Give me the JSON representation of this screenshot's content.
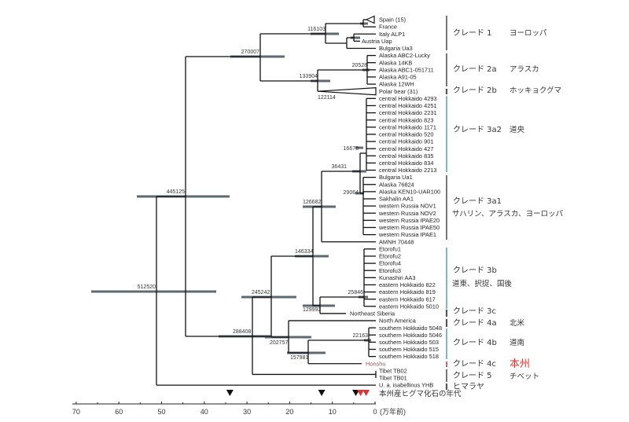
{
  "colors": {
    "branch": "#111111",
    "error_bar": "#5f6873",
    "blue_bracket": "#5aa9c2",
    "grey_bracket": "#555555",
    "red": "#d23a3a"
  },
  "leaves": [
    "Spain (15)",
    "France",
    "Italy ALP1",
    "Austria Uap",
    "Bulgaria Ua3",
    "Alaska ABC2-Lucky",
    "Alaska 14KB",
    "Alaska ABC1-051711",
    "Alaska A91-05",
    "Alaska 12WH",
    "Polar bear (31)",
    "central Hokkaido 4293",
    "central Hokkaido 4251",
    "central Hokkaido 2231",
    "central Hokkaido 823",
    "central Hokkaido 1171",
    "central Hokkaido 520",
    "central Hokkaido 901",
    "central Hokkaido 427",
    "central Hokkaido 835",
    "central Hokkaido 834",
    "central Hokkaido 2213",
    "Bulgaria  Ua1",
    "Alaska 76824",
    "Alaska KEN10-UAR100",
    "Sakhalin AA1",
    "western Russia NOV1",
    "western Russia NOV2",
    "western Russia IPAE20",
    "western Russia IPAE50",
    "western Russia IPAE1",
    "AMNH 70448",
    "Etorofu1",
    "Etorofu2",
    "Etorofu4",
    "Etorofu3",
    "Kunashiri AA3",
    "eastern Hokkaido 822",
    "eastern Hokkaido 819",
    "eastern Hokkaido 617",
    "eastern Hokkaido 5010",
    "Northeast Siberia",
    "North America",
    "southern Hokkaido 5048",
    "southern Hokkaido 5046",
    "southern Hokkaido 503",
    "southern Hokkaido 515",
    "southern Hokkaido 518",
    "Honshu",
    "Tibet TB02",
    "Tibet TB01",
    "U. a. isabellinus YHB"
  ],
  "node_labels": {
    "root": "512520",
    "n445125": "445125",
    "n270007": "270007",
    "n116103": "116103",
    "n133904": "133904",
    "n122114": "122114",
    "n20528": "20528",
    "n16678": "16678",
    "n36431": "36431",
    "n29064": "29064",
    "n126682": "126682",
    "n146334": "146334",
    "n129992": "129992",
    "n25846": "25846",
    "n245242": "245242",
    "n288408": "288408",
    "n202757": "202757",
    "n157981": "157981",
    "n22163": "22163"
  },
  "clades": [
    {
      "name": "クレード 1",
      "region": "ヨーロッパ",
      "color": "grey"
    },
    {
      "name": "クレード 2a",
      "region": "アラスカ",
      "color": "grey"
    },
    {
      "name": "クレード 2b",
      "region": "ホッキョクグマ",
      "color": "grey"
    },
    {
      "name": "クレード 3a2",
      "region": "道央",
      "color": "blue"
    },
    {
      "name": "クレード 3a1",
      "region": "サハリン、アラスカ、ヨーロッパ",
      "color": "grey"
    },
    {
      "name": "クレード 3b",
      "region": "道東、択捉、国後",
      "color": "blue"
    },
    {
      "name": "クレード 3c",
      "region": "",
      "color": "grey"
    },
    {
      "name": "クレード 4a",
      "region": "北米",
      "color": "grey"
    },
    {
      "name": "クレード 4b",
      "region": "道南",
      "color": "blue"
    },
    {
      "name": "クレード 4c",
      "region": "本州",
      "color": "red"
    },
    {
      "name": "クレード 5",
      "region": "チベット",
      "color": "grey"
    },
    {
      "name": "ヒマラヤ",
      "region": "",
      "color": "grey"
    }
  ],
  "axis": {
    "ticks": [
      "70",
      "60",
      "50",
      "40",
      "30",
      "20",
      "10",
      "0"
    ],
    "tick_values": [
      70,
      60,
      50,
      40,
      30,
      20,
      10,
      0
    ],
    "unit_label": "(万年前)"
  },
  "fossils": {
    "legend": "本州産ヒグマ化石の年代",
    "markers": [
      {
        "age": 34,
        "color": "black"
      },
      {
        "age": 12.5,
        "color": "black"
      },
      {
        "age": 4.5,
        "color": "black"
      },
      {
        "age": 3.4,
        "color": "red"
      },
      {
        "age": 2.1,
        "color": "red"
      }
    ]
  }
}
